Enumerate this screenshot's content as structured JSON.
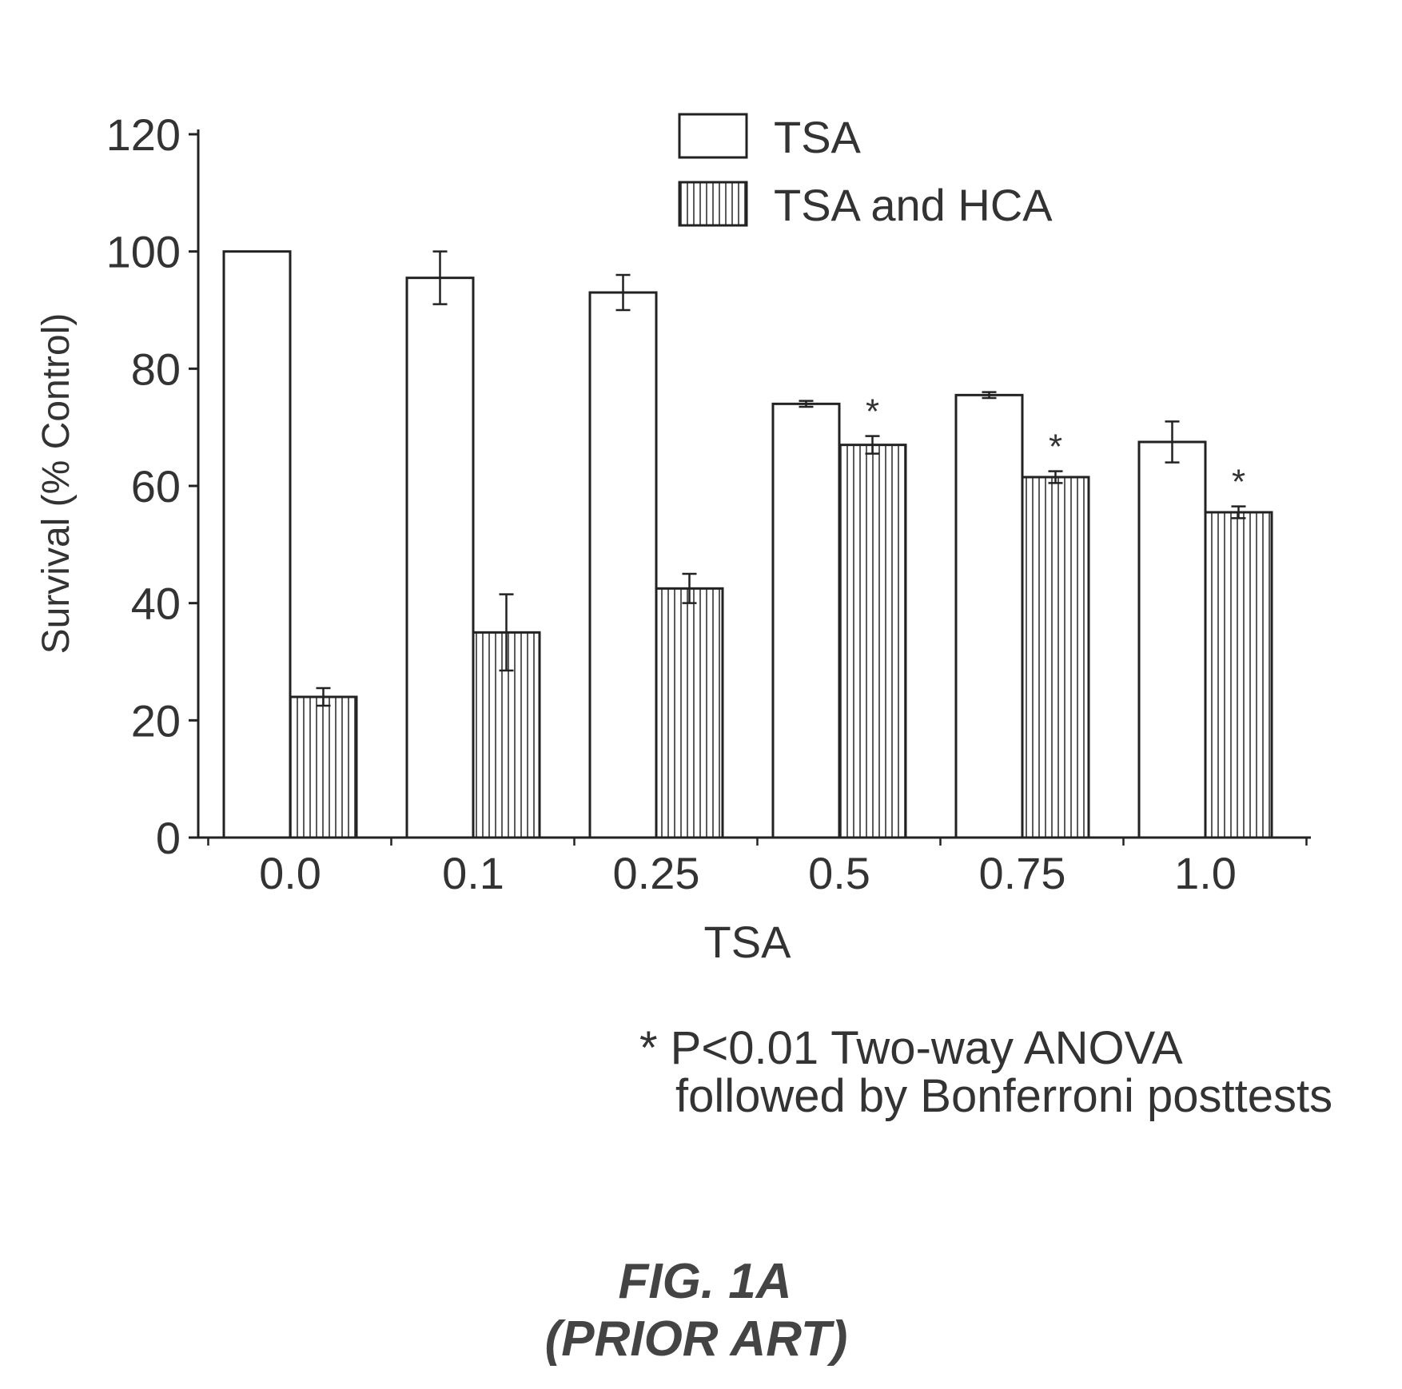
{
  "chart_data": {
    "type": "bar",
    "xlabel": "TSA",
    "ylabel": "Survival (% Control)",
    "ylim": [
      0,
      120
    ],
    "yticks": [
      0,
      20,
      40,
      60,
      80,
      100,
      120
    ],
    "categories": [
      "0.0",
      "0.1",
      "0.25",
      "0.5",
      "0.75",
      "1.0"
    ],
    "series": [
      {
        "name": "TSA",
        "pattern": "solid-white",
        "values": [
          100,
          95.5,
          93,
          74,
          75.5,
          67.5
        ],
        "errors": [
          0,
          4.5,
          3,
          0.5,
          0.5,
          3.5
        ]
      },
      {
        "name": "TSA and HCA",
        "pattern": "vertical-hatch",
        "values": [
          24,
          35,
          42.5,
          67,
          61.5,
          55.5
        ],
        "errors": [
          1.5,
          6.5,
          2.5,
          1.5,
          1,
          1
        ]
      }
    ],
    "significance": [
      {
        "category": "0.5",
        "series": "TSA and HCA",
        "marker": "*"
      },
      {
        "category": "0.75",
        "series": "TSA and HCA",
        "marker": "*"
      },
      {
        "category": "1.0",
        "series": "TSA and HCA",
        "marker": "*"
      }
    ],
    "legend_position": "top-right",
    "grid": false,
    "colors": {
      "stroke": "#222222",
      "fill": "#ffffff"
    }
  },
  "annotation": {
    "line1": "* P<0.01 Two-way ANOVA",
    "line2": "followed by Bonferroni posttests"
  },
  "figure": {
    "label": "FIG. 1A",
    "sublabel": "(PRIOR ART)"
  }
}
